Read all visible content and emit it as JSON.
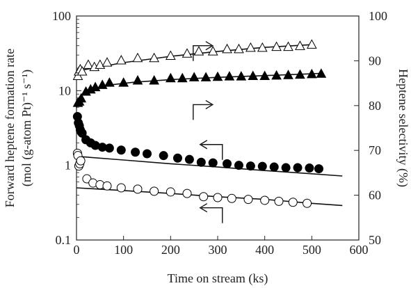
{
  "chart_data": {
    "type": "scatter",
    "title": "",
    "xlabel": "Time on stream (ks)",
    "ylabel_left": "Forward heptene formation rate",
    "ylabel_left_units": "(mol (g-atom Pt)⁻¹ s⁻¹)",
    "ylabel_right": "Heptene selectivity (%)",
    "xlim": [
      0,
      600
    ],
    "ylim_left": [
      0.1,
      100
    ],
    "ylim_right": [
      50,
      100
    ],
    "y_left_scale": "log",
    "x_ticks": [
      "0",
      "100",
      "200",
      "300",
      "400",
      "500",
      "600"
    ],
    "y_left_ticks": [
      "0.1",
      "1",
      "10",
      "100"
    ],
    "y_right_ticks": [
      "50",
      "60",
      "70",
      "80",
      "90",
      "100"
    ],
    "grid": false,
    "legend": "none",
    "series": [
      {
        "marker": "open-circle",
        "axis": "left",
        "x": [
          2,
          3,
          5,
          7,
          9,
          22,
          35,
          50,
          65,
          95,
          130,
          165,
          200,
          235,
          270,
          300,
          330,
          365,
          400,
          430,
          460,
          490
        ],
        "y": [
          1.45,
          1.35,
          0.98,
          1.05,
          1.15,
          0.66,
          0.58,
          0.55,
          0.53,
          0.5,
          0.48,
          0.45,
          0.44,
          0.42,
          0.38,
          0.37,
          0.36,
          0.35,
          0.34,
          0.33,
          0.32,
          0.31
        ]
      },
      {
        "marker": "filled-circle",
        "axis": "left",
        "x": [
          2,
          4,
          6,
          8,
          10,
          12,
          20,
          30,
          40,
          55,
          70,
          95,
          125,
          150,
          185,
          215,
          240,
          265,
          290,
          320,
          345,
          370,
          395,
          420,
          445,
          470,
          495,
          515
        ],
        "y": [
          4.5,
          3.7,
          3.4,
          3.0,
          2.8,
          2.7,
          2.2,
          2.0,
          1.85,
          1.75,
          1.7,
          1.6,
          1.5,
          1.43,
          1.35,
          1.25,
          1.2,
          1.1,
          1.08,
          1.05,
          1.0,
          0.98,
          0.97,
          0.95,
          0.93,
          0.93,
          0.92,
          0.9
        ]
      },
      {
        "marker": "open-triangle",
        "axis": "right",
        "x": [
          3,
          5,
          8,
          12,
          25,
          38,
          50,
          65,
          95,
          130,
          165,
          200,
          235,
          260,
          290,
          320,
          345,
          370,
          395,
          425,
          450,
          475,
          500
        ],
        "y": [
          86.5,
          87.5,
          88.0,
          87.5,
          89.0,
          88.5,
          89.0,
          89.5,
          90.0,
          90.5,
          90.5,
          91.0,
          91.5,
          92.0,
          92.0,
          92.5,
          92.5,
          92.8,
          92.8,
          93.0,
          93.0,
          93.2,
          93.5
        ]
      },
      {
        "marker": "filled-triangle",
        "axis": "right",
        "x": [
          3,
          6,
          10,
          20,
          30,
          40,
          55,
          70,
          100,
          130,
          165,
          200,
          225,
          250,
          275,
          300,
          325,
          350,
          375,
          400,
          425,
          450,
          475,
          500,
          520
        ],
        "y": [
          80.5,
          80.8,
          81.5,
          83.0,
          83.5,
          84.0,
          84.5,
          85.0,
          85.0,
          85.5,
          85.5,
          86.0,
          86.0,
          86.2,
          86.2,
          86.3,
          86.4,
          86.4,
          86.5,
          86.5,
          86.6,
          86.7,
          86.8,
          86.9,
          87.0
        ]
      }
    ],
    "fit_lines": [
      {
        "axis": "left",
        "x": [
          0,
          100,
          200,
          300,
          400,
          500,
          565
        ],
        "y": [
          1.32,
          1.18,
          1.05,
          0.95,
          0.85,
          0.77,
          0.72
        ]
      },
      {
        "axis": "left",
        "x": [
          0,
          100,
          200,
          300,
          400,
          500,
          565
        ],
        "y": [
          0.5,
          0.46,
          0.42,
          0.38,
          0.35,
          0.31,
          0.29
        ]
      },
      {
        "axis": "right",
        "x": [
          0,
          100,
          200,
          300,
          400,
          500
        ],
        "y": [
          87.7,
          89.6,
          91.0,
          92.1,
          93.0,
          93.6
        ]
      },
      {
        "axis": "right",
        "x": [
          0,
          5,
          15,
          35,
          70,
          120,
          200,
          300,
          400,
          500,
          520
        ],
        "y": [
          79.5,
          81.5,
          82.8,
          83.8,
          84.6,
          85.2,
          85.8,
          86.3,
          86.7,
          87.1,
          87.2
        ]
      }
    ],
    "annotations": [
      {
        "shape": "arrow-right",
        "points_to": "right axis",
        "x": 248,
        "y_left": 40
      },
      {
        "shape": "arrow-right",
        "points_to": "right axis",
        "x": 248,
        "y_left": 6.5
      },
      {
        "shape": "arrow-left",
        "points_to": "left axis",
        "x": 310,
        "y_left": 1.9
      },
      {
        "shape": "arrow-left",
        "points_to": "left axis",
        "x": 310,
        "y_left": 0.27
      }
    ]
  }
}
